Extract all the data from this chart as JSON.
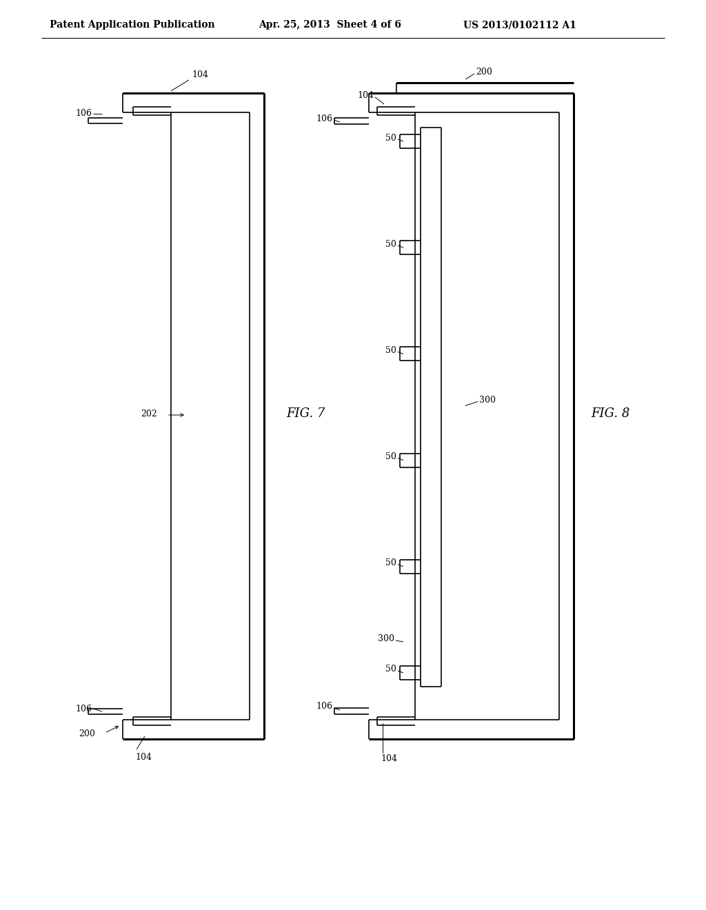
{
  "bg_color": "#ffffff",
  "header_text": "Patent Application Publication",
  "header_date": "Apr. 25, 2013  Sheet 4 of 6",
  "header_patent": "US 2013/0102112 A1",
  "fig7_label": "FIG. 7",
  "fig8_label": "FIG. 8",
  "lw_thin": 1.2,
  "lw_thick": 2.2,
  "lw_hair": 0.7
}
